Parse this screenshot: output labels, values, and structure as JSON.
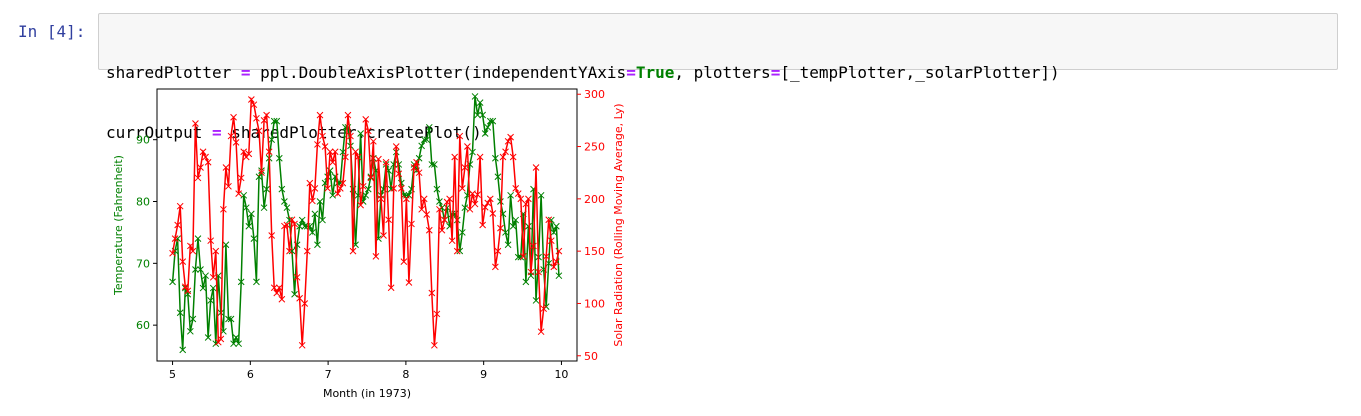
{
  "cell": {
    "prompt": "In [4]:",
    "code_lines": [
      [
        {
          "t": "sharedPlotter ",
          "c": "plain"
        },
        {
          "t": "=",
          "c": "op"
        },
        {
          "t": " ppl.DoubleAxisPlotter(independentYAxis",
          "c": "plain"
        },
        {
          "t": "=",
          "c": "op"
        },
        {
          "t": "True",
          "c": "kw"
        },
        {
          "t": ", plotters",
          "c": "plain"
        },
        {
          "t": "=",
          "c": "op"
        },
        {
          "t": "[_tempPlotter,_solarPlotter])",
          "c": "plain"
        }
      ],
      [
        {
          "t": "currOutput ",
          "c": "plain"
        },
        {
          "t": "=",
          "c": "op"
        },
        {
          "t": " sharedPlotter.createPlot()",
          "c": "plain"
        }
      ]
    ]
  },
  "chart_data": {
    "type": "line",
    "xlabel": "Month (in 1973)",
    "ylabel_left": "Temperature (Fahrenheit)",
    "ylabel_right": "Solar Radiation (Rolling Moving Average, Ly)",
    "xlim": [
      4.8,
      10.2
    ],
    "xticks": [
      5,
      6,
      7,
      8,
      9,
      10
    ],
    "ylim_left": [
      54.2,
      98.2
    ],
    "yticks_left": [
      60,
      70,
      80,
      90
    ],
    "ylim_right": [
      45,
      305
    ],
    "yticks_right": [
      50,
      100,
      150,
      200,
      250,
      300
    ],
    "marker": "x",
    "series": [
      {
        "name": "Temperature",
        "axis": "left",
        "color": "#008000",
        "x_start": 5.0,
        "x_step": 0.0326797,
        "values": [
          67,
          72,
          74,
          62,
          56,
          66,
          65,
          59,
          61,
          69,
          74,
          69,
          66,
          68,
          58,
          64,
          66,
          57,
          68,
          62,
          59,
          73,
          61,
          61,
          57,
          58,
          57,
          67,
          81,
          79,
          76,
          78,
          74,
          67,
          84,
          85,
          79,
          82,
          87,
          90,
          93,
          93,
          87,
          82,
          80,
          79,
          77,
          72,
          65,
          73,
          76,
          77,
          76,
          76,
          76,
          75,
          78,
          73,
          80,
          77,
          83,
          84,
          85,
          81,
          84,
          83,
          83,
          88,
          92,
          92,
          89,
          82,
          73,
          81,
          91,
          80,
          81,
          82,
          84,
          87,
          85,
          74,
          81,
          82,
          86,
          85,
          82,
          86,
          88,
          86,
          83,
          81,
          81,
          81,
          82,
          86,
          85,
          87,
          89,
          90,
          90,
          92,
          86,
          86,
          82,
          80,
          79,
          77,
          79,
          76,
          78,
          78,
          77,
          72,
          75,
          79,
          81,
          86,
          88,
          97,
          94,
          96,
          94,
          91,
          92,
          93,
          93,
          87,
          84,
          80,
          78,
          75,
          73,
          81,
          76,
          77,
          71,
          71,
          78,
          67,
          76,
          68,
          82,
          64,
          71,
          81,
          69,
          63,
          70,
          77,
          75,
          76,
          68
        ]
      },
      {
        "name": "Solar Radiation",
        "axis": "right",
        "color": "#ff0000",
        "x_start": 5.0,
        "x_step": 0.0326797,
        "values": [
          148,
          162,
          175,
          193,
          140,
          116,
          112,
          155,
          150,
          272,
          220,
          230,
          245,
          240,
          235,
          160,
          125,
          150,
          63,
          66,
          190,
          230,
          212,
          260,
          278,
          254,
          205,
          220,
          245,
          240,
          243,
          295,
          290,
          277,
          265,
          225,
          275,
          280,
          245,
          165,
          115,
          110,
          115,
          104,
          174,
          175,
          150,
          180,
          176,
          125,
          105,
          60,
          100,
          150,
          215,
          198,
          210,
          252,
          280,
          260,
          250,
          210,
          245,
          235,
          245,
          205,
          210,
          215,
          240,
          280,
          260,
          150,
          245,
          240,
          194,
          212,
          276,
          265,
          220,
          255,
          145,
          238,
          200,
          165,
          235,
          180,
          115,
          210,
          250,
          224,
          210,
          140,
          200,
          120,
          176,
          230,
          235,
          225,
          190,
          200,
          185,
          170,
          110,
          60,
          90,
          190,
          170,
          180,
          197,
          200,
          160,
          240,
          150,
          260,
          210,
          230,
          250,
          190,
          205,
          195,
          204,
          240,
          175,
          192,
          196,
          200,
          186,
          135,
          150,
          172,
          240,
          245,
          255,
          259,
          240,
          210,
          205,
          200,
          145,
          195,
          200,
          130,
          155,
          230,
          130,
          73,
          95,
          145,
          180,
          160,
          135,
          140,
          150
        ]
      }
    ]
  }
}
